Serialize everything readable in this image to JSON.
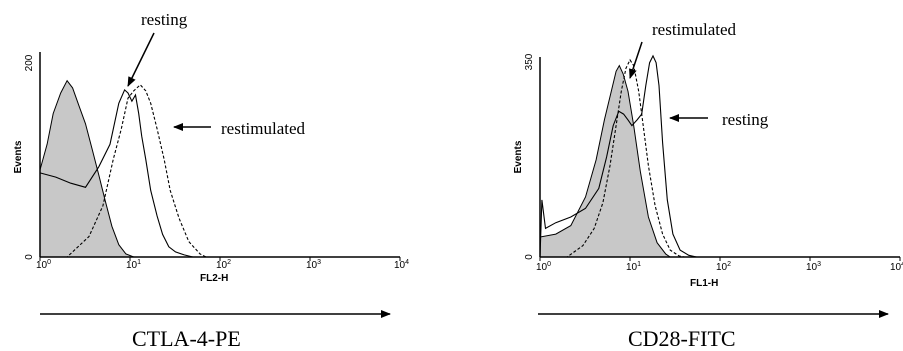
{
  "chart_data": [
    {
      "type": "histogram",
      "title": "",
      "xlabel": "FL2-H",
      "ylabel": "Events",
      "xscale": "log",
      "xlim": [
        1,
        10000
      ],
      "ylim": [
        0,
        200
      ],
      "y_ticks": [
        "0",
        "200"
      ],
      "x_ticks": [
        {
          "base": "10",
          "exp": "0"
        },
        {
          "base": "10",
          "exp": "1"
        },
        {
          "base": "10",
          "exp": "2"
        },
        {
          "base": "10",
          "exp": "3"
        },
        {
          "base": "10",
          "exp": "4"
        }
      ],
      "marker_label": "CTLA-4-PE",
      "annotations": [
        "resting",
        "restimulated"
      ],
      "series": [
        {
          "style": "filled-gray",
          "fill": "#c8c8c8",
          "x": [
            1.0,
            1.2,
            1.4,
            1.7,
            2.0,
            2.3,
            2.7,
            3.2,
            3.8,
            4.5,
            5.3,
            6.3,
            7.5,
            9.0,
            11
          ],
          "y": [
            85,
            110,
            140,
            160,
            172,
            165,
            148,
            130,
            105,
            80,
            55,
            30,
            12,
            3,
            0
          ]
        },
        {
          "style": "solid",
          "x": [
            1.0,
            1.5,
            2.2,
            3.2,
            4.5,
            6.0,
            7.5,
            8.7,
            9.5,
            10.5,
            11.5,
            12.5,
            13.5,
            15,
            17,
            20,
            23,
            27,
            32,
            40,
            50
          ],
          "y": [
            82,
            78,
            72,
            68,
            88,
            110,
            150,
            163,
            160,
            152,
            158,
            140,
            118,
            95,
            65,
            40,
            22,
            10,
            5,
            2,
            0
          ]
        },
        {
          "style": "dashed",
          "x": [
            1.0,
            2.0,
            3.5,
            5.0,
            6.5,
            8.0,
            9.5,
            11,
            13,
            15,
            17,
            20,
            24,
            28,
            35,
            45,
            60,
            70
          ],
          "y": [
            0,
            0,
            20,
            50,
            95,
            125,
            155,
            162,
            168,
            162,
            150,
            125,
            95,
            65,
            38,
            15,
            3,
            0
          ]
        }
      ]
    },
    {
      "type": "histogram",
      "title": "",
      "xlabel": "FL1-H",
      "ylabel": "Events",
      "xscale": "log",
      "xlim": [
        1,
        10000
      ],
      "ylim": [
        0,
        350
      ],
      "y_ticks": [
        "0",
        "350"
      ],
      "x_ticks": [
        {
          "base": "10",
          "exp": "0"
        },
        {
          "base": "10",
          "exp": "1"
        },
        {
          "base": "10",
          "exp": "2"
        },
        {
          "base": "10",
          "exp": "3"
        },
        {
          "base": "10",
          "exp": "4"
        }
      ],
      "marker_label": "CD28-FITC",
      "annotations": [
        "restimulated",
        "resting"
      ],
      "series": [
        {
          "style": "filled-gray",
          "fill": "#c8c8c8",
          "x": [
            1.0,
            1.5,
            2.2,
            3.2,
            4.2,
            5.2,
            6.2,
            7.0,
            7.6,
            8.4,
            9.5,
            11,
            13,
            16,
            20,
            25,
            28
          ],
          "y": [
            35,
            40,
            55,
            105,
            170,
            240,
            290,
            325,
            335,
            320,
            290,
            230,
            150,
            70,
            25,
            5,
            0
          ]
        },
        {
          "style": "solid",
          "x": [
            1.0,
            1.05,
            1.15,
            1.5,
            2.2,
            3.2,
            4.5,
            5.5,
            6.5,
            7.5,
            8.5,
            9.5,
            10.5,
            12,
            13.5,
            15,
            16.5,
            18,
            19.5,
            21,
            23,
            26,
            30,
            36,
            45,
            55
          ],
          "y": [
            0,
            100,
            50,
            60,
            70,
            85,
            120,
            175,
            230,
            255,
            250,
            240,
            230,
            240,
            250,
            300,
            340,
            352,
            340,
            300,
            200,
            100,
            40,
            12,
            3,
            0
          ]
        },
        {
          "style": "dashed",
          "x": [
            1.0,
            2.0,
            3.0,
            4.0,
            5.0,
            6.0,
            7.0,
            8.0,
            9.0,
            10,
            11,
            12.5,
            14,
            16,
            19,
            23,
            28,
            35,
            40
          ],
          "y": [
            0,
            0,
            20,
            50,
            95,
            160,
            230,
            290,
            330,
            345,
            335,
            290,
            230,
            160,
            90,
            40,
            12,
            2,
            0
          ]
        }
      ]
    }
  ]
}
